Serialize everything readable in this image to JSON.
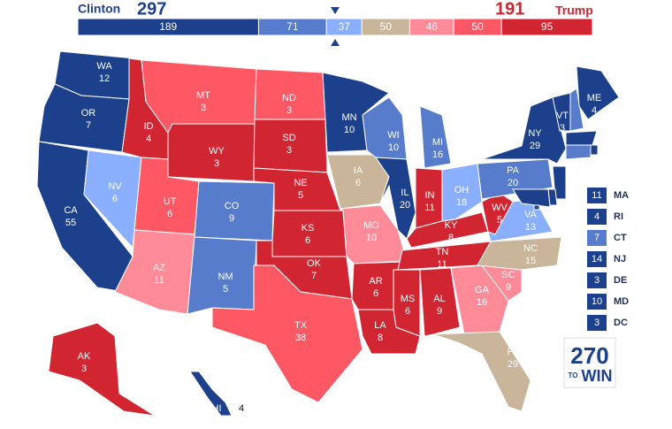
{
  "header": {
    "left_name": "Clinton",
    "left_total": 297,
    "left_color": "#1c408c",
    "right_total": 191,
    "right_name": "Trump",
    "right_color": "#d22532"
  },
  "bar": {
    "segments": [
      {
        "value": 189,
        "color": "#1c408c"
      },
      {
        "value": 71,
        "color": "#577ccc"
      },
      {
        "value": 37,
        "color": "#8aafff"
      },
      {
        "value": 50,
        "color": "#c9b59a"
      },
      {
        "value": 46,
        "color": "#ff8b98"
      },
      {
        "value": 50,
        "color": "#ff5865"
      },
      {
        "value": 95,
        "color": "#d22532"
      }
    ]
  },
  "states": [
    {
      "abbr": "WA",
      "ev": 12,
      "color": "#1c408c"
    },
    {
      "abbr": "OR",
      "ev": 7,
      "color": "#1c408c"
    },
    {
      "abbr": "CA",
      "ev": 55,
      "color": "#1c408c"
    },
    {
      "abbr": "NV",
      "ev": 6,
      "color": "#8aafff"
    },
    {
      "abbr": "ID",
      "ev": 4,
      "color": "#d22532"
    },
    {
      "abbr": "MT",
      "ev": 3,
      "color": "#ff5865"
    },
    {
      "abbr": "WY",
      "ev": 3,
      "color": "#d22532"
    },
    {
      "abbr": "UT",
      "ev": 6,
      "color": "#ff5865"
    },
    {
      "abbr": "AZ",
      "ev": 11,
      "color": "#ff8b98"
    },
    {
      "abbr": "CO",
      "ev": 9,
      "color": "#577ccc"
    },
    {
      "abbr": "NM",
      "ev": 5,
      "color": "#577ccc"
    },
    {
      "abbr": "ND",
      "ev": 3,
      "color": "#ff5865"
    },
    {
      "abbr": "SD",
      "ev": 3,
      "color": "#d22532"
    },
    {
      "abbr": "NE",
      "ev": 5,
      "color": "#d22532"
    },
    {
      "abbr": "KS",
      "ev": 6,
      "color": "#d22532"
    },
    {
      "abbr": "OK",
      "ev": 7,
      "color": "#d22532"
    },
    {
      "abbr": "TX",
      "ev": 38,
      "color": "#ff5865"
    },
    {
      "abbr": "MN",
      "ev": 10,
      "color": "#1c408c"
    },
    {
      "abbr": "IA",
      "ev": 6,
      "color": "#c9b59a"
    },
    {
      "abbr": "MO",
      "ev": 10,
      "color": "#ff8b98"
    },
    {
      "abbr": "AR",
      "ev": 6,
      "color": "#d22532"
    },
    {
      "abbr": "LA",
      "ev": 8,
      "color": "#d22532"
    },
    {
      "abbr": "WI",
      "ev": 10,
      "color": "#577ccc"
    },
    {
      "abbr": "IL",
      "ev": 20,
      "color": "#1c408c"
    },
    {
      "abbr": "MI",
      "ev": 16,
      "color": "#577ccc"
    },
    {
      "abbr": "IN",
      "ev": 11,
      "color": "#d22532"
    },
    {
      "abbr": "OH",
      "ev": 18,
      "color": "#8aafff"
    },
    {
      "abbr": "KY",
      "ev": 8,
      "color": "#d22532"
    },
    {
      "abbr": "TN",
      "ev": 11,
      "color": "#d22532"
    },
    {
      "abbr": "MS",
      "ev": 6,
      "color": "#d22532"
    },
    {
      "abbr": "AL",
      "ev": 9,
      "color": "#d22532"
    },
    {
      "abbr": "GA",
      "ev": 16,
      "color": "#ff8b98"
    },
    {
      "abbr": "FL",
      "ev": 29,
      "color": "#c9b59a"
    },
    {
      "abbr": "SC",
      "ev": 9,
      "color": "#ff8b98"
    },
    {
      "abbr": "NC",
      "ev": 15,
      "color": "#c9b59a"
    },
    {
      "abbr": "VA",
      "ev": 13,
      "color": "#8aafff"
    },
    {
      "abbr": "WV",
      "ev": 5,
      "color": "#d22532"
    },
    {
      "abbr": "PA",
      "ev": 20,
      "color": "#577ccc"
    },
    {
      "abbr": "NY",
      "ev": 29,
      "color": "#1c408c"
    },
    {
      "abbr": "VT",
      "ev": 3,
      "color": "#1c408c"
    },
    {
      "abbr": "NH",
      "color": "#577ccc"
    },
    {
      "abbr": "ME",
      "ev": 4,
      "color": "#1c408c"
    },
    {
      "abbr": "MA",
      "ev": 11,
      "color": "#1c408c"
    },
    {
      "abbr": "RI",
      "ev": 4,
      "color": "#1c408c"
    },
    {
      "abbr": "CT",
      "ev": 7,
      "color": "#577ccc"
    },
    {
      "abbr": "NJ",
      "ev": 14,
      "color": "#1c408c"
    },
    {
      "abbr": "DE",
      "ev": 3,
      "color": "#1c408c"
    },
    {
      "abbr": "MD",
      "ev": 10,
      "color": "#1c408c"
    },
    {
      "abbr": "DC",
      "ev": 3,
      "color": "#1c408c"
    },
    {
      "abbr": "AK",
      "ev": 3,
      "color": "#d22532"
    },
    {
      "abbr": "HI",
      "ev": 4,
      "color": "#1c408c"
    }
  ],
  "logo": {
    "number": "270",
    "small": "TO",
    "word": "WIN"
  }
}
